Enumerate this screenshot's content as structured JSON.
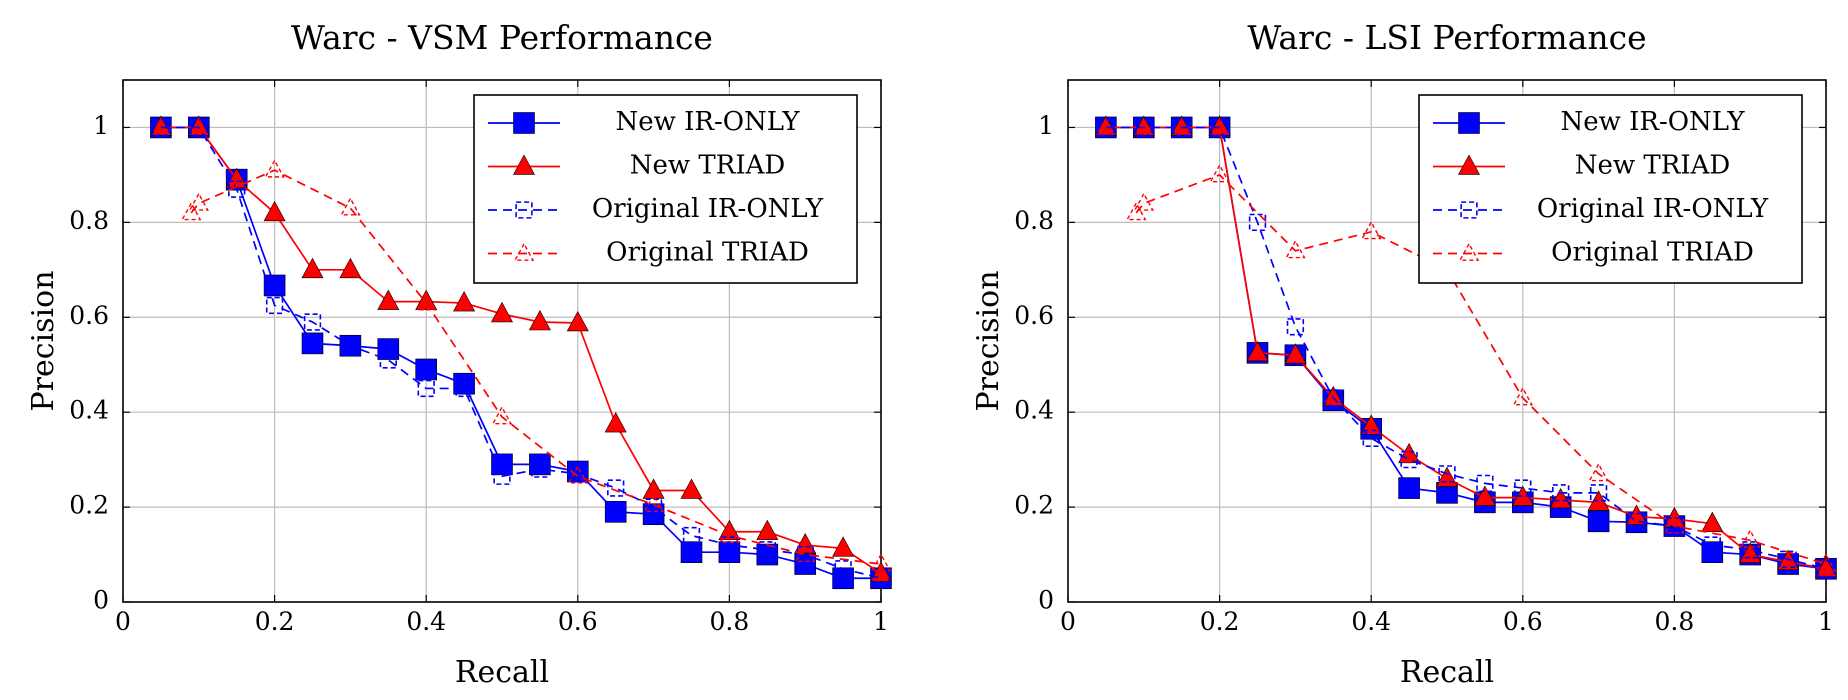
{
  "chart_data": [
    {
      "type": "line",
      "title": "Warc - VSM Performance",
      "xlabel": "Recall",
      "ylabel": "Precision",
      "xlim": [
        0,
        1
      ],
      "ylim": [
        0,
        1.1
      ],
      "xticks": [
        0,
        0.2,
        0.4,
        0.6,
        0.8,
        1
      ],
      "yticks": [
        0,
        0.2,
        0.4,
        0.6,
        0.8,
        1
      ],
      "xtick_labels": [
        "0",
        "0.2",
        "0.4",
        "0.6",
        "0.8",
        "1"
      ],
      "ytick_labels": [
        "0",
        "0.2",
        "0.4",
        "0.6",
        "0.8",
        "1"
      ],
      "grid": true,
      "legend_position": "top-right",
      "series": [
        {
          "name": "New IR-ONLY",
          "color": "#0000ff",
          "marker": "square",
          "dashed": false,
          "x": [
            0.05,
            0.1,
            0.15,
            0.2,
            0.25,
            0.3,
            0.35,
            0.4,
            0.45,
            0.5,
            0.55,
            0.6,
            0.65,
            0.7,
            0.75,
            0.8,
            0.85,
            0.9,
            0.95,
            1.0
          ],
          "y": [
            1.0,
            1.0,
            0.89,
            0.667,
            0.545,
            0.54,
            0.533,
            0.49,
            0.46,
            0.29,
            0.29,
            0.275,
            0.19,
            0.185,
            0.105,
            0.105,
            0.1,
            0.08,
            0.05,
            0.05
          ]
        },
        {
          "name": "New TRIAD",
          "color": "#ff0000",
          "marker": "triangle",
          "dashed": false,
          "x": [
            0.05,
            0.1,
            0.15,
            0.2,
            0.25,
            0.3,
            0.35,
            0.4,
            0.45,
            0.5,
            0.55,
            0.6,
            0.65,
            0.7,
            0.75,
            0.8,
            0.85,
            0.9,
            0.95,
            1.0
          ],
          "y": [
            1.0,
            1.0,
            0.89,
            0.82,
            0.7,
            0.7,
            0.633,
            0.633,
            0.63,
            0.607,
            0.59,
            0.588,
            0.375,
            0.235,
            0.235,
            0.148,
            0.148,
            0.12,
            0.113,
            0.06
          ]
        },
        {
          "name": "Original IR-ONLY",
          "color": "#0000ff",
          "marker": "open-square",
          "dashed": true,
          "x": [
            0.05,
            0.1,
            0.15,
            0.2,
            0.25,
            0.3,
            0.35,
            0.4,
            0.45,
            0.5,
            0.55,
            0.6,
            0.65,
            0.7,
            0.75,
            0.8,
            0.85,
            0.9,
            0.95,
            1.0
          ],
          "y": [
            1.0,
            1.0,
            0.87,
            0.625,
            0.59,
            0.54,
            0.51,
            0.45,
            0.45,
            0.265,
            0.28,
            0.27,
            0.24,
            0.2,
            0.14,
            0.12,
            0.11,
            0.1,
            0.07,
            0.05
          ]
        },
        {
          "name": "Original TRIAD",
          "color": "#ff0000",
          "marker": "open-triangle",
          "dashed": true,
          "x": [
            0.09,
            0.1,
            0.2,
            0.3,
            0.4,
            0.5,
            0.6,
            0.7,
            0.8,
            0.9,
            1.0
          ],
          "y": [
            0.82,
            0.84,
            0.91,
            0.83,
            0.63,
            0.39,
            0.265,
            0.205,
            0.14,
            0.1,
            0.08
          ]
        }
      ]
    },
    {
      "type": "line",
      "title": "Warc - LSI Performance",
      "xlabel": "Recall",
      "ylabel": "Precision",
      "xlim": [
        0,
        1
      ],
      "ylim": [
        0,
        1.1
      ],
      "xticks": [
        0,
        0.2,
        0.4,
        0.6,
        0.8,
        1
      ],
      "yticks": [
        0,
        0.2,
        0.4,
        0.6,
        0.8,
        1
      ],
      "xtick_labels": [
        "0",
        "0.2",
        "0.4",
        "0.6",
        "0.8",
        "1"
      ],
      "ytick_labels": [
        "0",
        "0.2",
        "0.4",
        "0.6",
        "0.8",
        "1"
      ],
      "grid": true,
      "legend_position": "top-right",
      "series": [
        {
          "name": "New IR-ONLY",
          "color": "#0000ff",
          "marker": "square",
          "dashed": false,
          "x": [
            0.05,
            0.1,
            0.15,
            0.2,
            0.25,
            0.3,
            0.35,
            0.4,
            0.45,
            0.5,
            0.55,
            0.6,
            0.65,
            0.7,
            0.75,
            0.8,
            0.85,
            0.9,
            0.95,
            1.0
          ],
          "y": [
            1.0,
            1.0,
            1.0,
            1.0,
            0.525,
            0.52,
            0.425,
            0.365,
            0.24,
            0.23,
            0.21,
            0.21,
            0.2,
            0.17,
            0.168,
            0.16,
            0.105,
            0.1,
            0.08,
            0.07
          ]
        },
        {
          "name": "New TRIAD",
          "color": "#ff0000",
          "marker": "triangle",
          "dashed": false,
          "x": [
            0.05,
            0.1,
            0.15,
            0.2,
            0.25,
            0.3,
            0.35,
            0.4,
            0.45,
            0.5,
            0.55,
            0.6,
            0.65,
            0.7,
            0.75,
            0.8,
            0.85,
            0.9,
            0.95,
            1.0
          ],
          "y": [
            1.0,
            1.0,
            1.0,
            1.0,
            0.525,
            0.52,
            0.43,
            0.37,
            0.31,
            0.26,
            0.22,
            0.22,
            0.215,
            0.21,
            0.18,
            0.175,
            0.165,
            0.1,
            0.085,
            0.07
          ]
        },
        {
          "name": "Original IR-ONLY",
          "color": "#0000ff",
          "marker": "open-square",
          "dashed": true,
          "x": [
            0.05,
            0.1,
            0.15,
            0.2,
            0.25,
            0.3,
            0.35,
            0.4,
            0.45,
            0.5,
            0.55,
            0.6,
            0.65,
            0.7,
            0.75,
            0.8,
            0.85,
            0.9,
            0.95,
            1.0
          ],
          "y": [
            1.0,
            1.0,
            1.0,
            1.0,
            0.8,
            0.58,
            0.43,
            0.345,
            0.3,
            0.27,
            0.25,
            0.24,
            0.23,
            0.23,
            0.17,
            0.16,
            0.12,
            0.11,
            0.09,
            0.07
          ]
        },
        {
          "name": "Original TRIAD",
          "color": "#ff0000",
          "marker": "open-triangle",
          "dashed": true,
          "x": [
            0.09,
            0.1,
            0.2,
            0.3,
            0.4,
            0.5,
            0.6,
            0.7,
            0.8,
            0.9,
            1.0
          ],
          "y": [
            0.82,
            0.84,
            0.9,
            0.74,
            0.78,
            0.7,
            0.43,
            0.27,
            0.16,
            0.13,
            0.08
          ]
        }
      ]
    }
  ]
}
